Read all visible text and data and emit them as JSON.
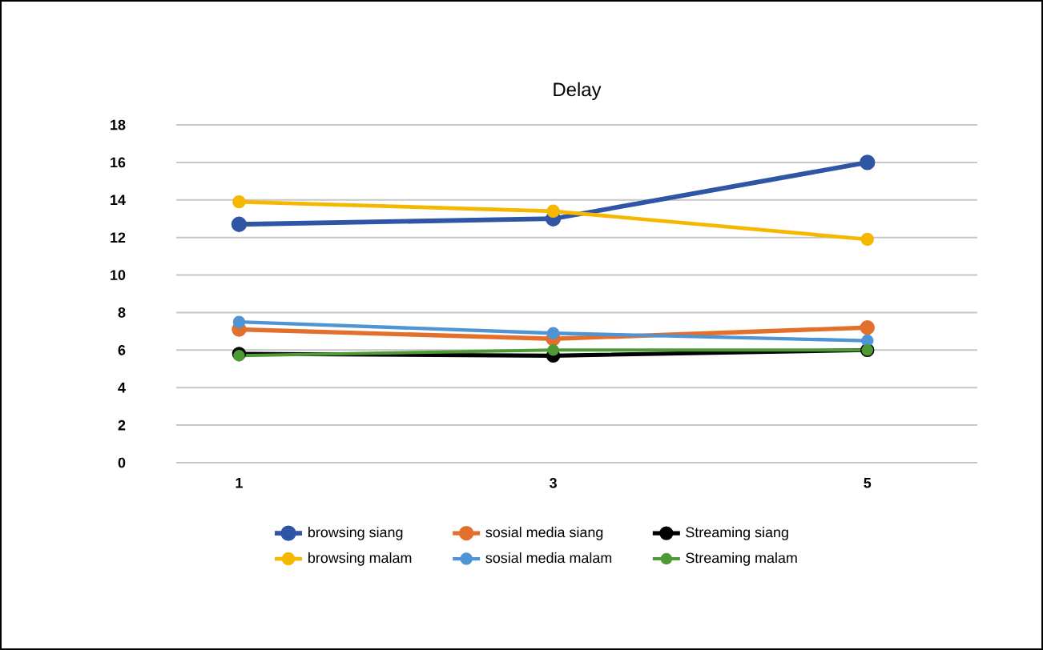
{
  "chart_data": {
    "type": "line",
    "title": "Delay",
    "categories": [
      "1",
      "3",
      "5"
    ],
    "series": [
      {
        "name": "browsing siang",
        "color": "#2f55a4",
        "values": [
          12.7,
          13.0,
          16.0
        ]
      },
      {
        "name": "sosial media siang",
        "color": "#e2702c",
        "values": [
          7.1,
          6.6,
          7.2
        ]
      },
      {
        "name": "Streaming siang",
        "color": "#000000",
        "values": [
          5.8,
          5.7,
          6.0
        ]
      },
      {
        "name": "browsing malam",
        "color": "#f5b700",
        "values": [
          13.9,
          13.4,
          11.9
        ]
      },
      {
        "name": "sosial media malam",
        "color": "#4f94d4",
        "values": [
          7.5,
          6.9,
          6.5
        ]
      },
      {
        "name": "Streaming malam",
        "color": "#4e9a35",
        "values": [
          5.7,
          6.0,
          6.0
        ]
      }
    ],
    "ylim": [
      0,
      18
    ],
    "yticks": [
      0,
      2,
      4,
      6,
      8,
      10,
      12,
      14,
      16,
      18
    ],
    "grid": "y",
    "legend": "bottom",
    "marker": "circle",
    "line_style": "solid"
  }
}
